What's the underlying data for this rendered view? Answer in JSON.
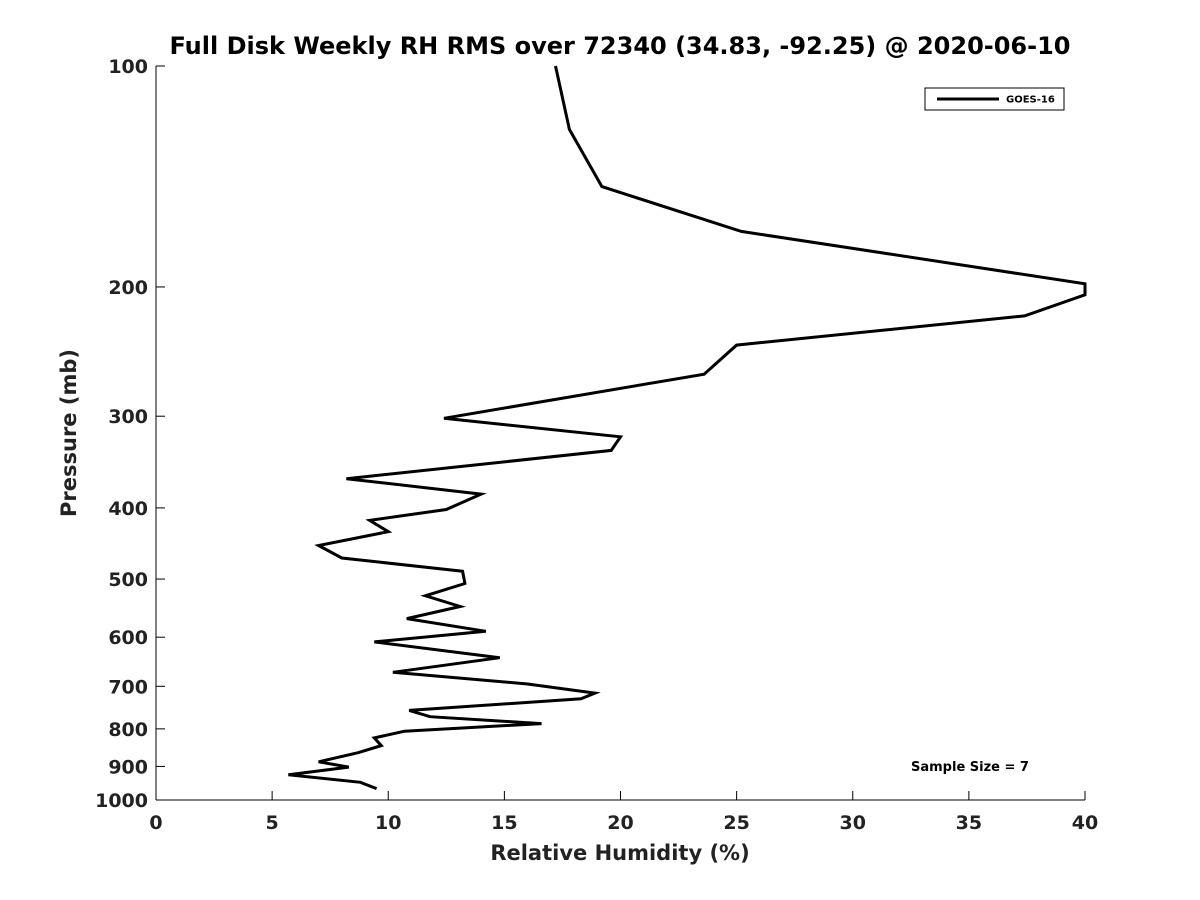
{
  "chart_data": {
    "type": "line",
    "title": "Full Disk Weekly RH RMS over 72340 (34.83, -92.25) @ 2020-06-10",
    "xlabel": "Relative Humidity (%)",
    "ylabel": "Pressure (mb)",
    "xlim": [
      0,
      40
    ],
    "ylim": [
      100,
      1000
    ],
    "y_scale": "log",
    "y_reversed": true,
    "x_ticks": [
      0,
      5,
      10,
      15,
      20,
      25,
      30,
      35,
      40
    ],
    "y_ticks": [
      100,
      200,
      300,
      400,
      500,
      600,
      700,
      800,
      900,
      1000
    ],
    "grid": false,
    "legend_position": "top-right",
    "series": [
      {
        "name": "GOES-16",
        "color": "#000000",
        "points": [
          [
            17.2,
            100
          ],
          [
            17.8,
            122
          ],
          [
            19.2,
            146
          ],
          [
            25.2,
            168
          ],
          [
            40.0,
            198
          ],
          [
            40.0,
            205
          ],
          [
            37.4,
            219
          ],
          [
            25.0,
            240
          ],
          [
            23.6,
            263
          ],
          [
            12.4,
            302
          ],
          [
            20.0,
            320
          ],
          [
            19.6,
            334
          ],
          [
            8.2,
            365
          ],
          [
            14.0,
            383
          ],
          [
            12.5,
            402
          ],
          [
            9.2,
            416
          ],
          [
            10.0,
            431
          ],
          [
            7.0,
            450
          ],
          [
            8.0,
            468
          ],
          [
            13.2,
            488
          ],
          [
            13.3,
            507
          ],
          [
            11.6,
            527
          ],
          [
            13.1,
            545
          ],
          [
            10.8,
            566
          ],
          [
            14.2,
            589
          ],
          [
            9.4,
            609
          ],
          [
            14.8,
            640
          ],
          [
            10.2,
            670
          ],
          [
            16.0,
            695
          ],
          [
            18.9,
            715
          ],
          [
            18.3,
            728
          ],
          [
            10.9,
            755
          ],
          [
            11.8,
            770
          ],
          [
            16.6,
            787
          ],
          [
            10.7,
            806
          ],
          [
            9.4,
            823
          ],
          [
            9.7,
            843
          ],
          [
            8.7,
            862
          ],
          [
            7.0,
            887
          ],
          [
            8.3,
            902
          ],
          [
            5.7,
            924
          ],
          [
            8.8,
            946
          ],
          [
            9.5,
            965
          ]
        ]
      }
    ],
    "legend": [
      {
        "label": "GOES-16"
      }
    ],
    "annotations": [
      {
        "text": "Sample Size = 7"
      }
    ]
  }
}
